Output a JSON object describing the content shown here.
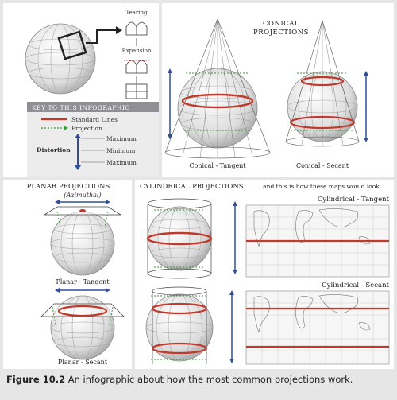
{
  "process": {
    "step1": "Tearing",
    "step2": "Expansion"
  },
  "conical": {
    "heading_line1": "CONICAL",
    "heading_line2": "PROJECTIONS",
    "tangent_label": "Conical - Tangent",
    "secant_label": "Conical - Secant"
  },
  "key": {
    "title": "KEY TO THIS INFOGRAPHIC",
    "standard_lines": "Standard Lines",
    "projection": "Projection",
    "distortion": "Distortion",
    "maximum_top": "Maximum",
    "minimum": "Minimum",
    "maximum_bottom": "Maximum"
  },
  "planar": {
    "heading": "PLANAR PROJECTIONS",
    "subheading": "(Azimuthal)",
    "tangent_label": "Planar - Tangent",
    "secant_label": "Planar - Secant"
  },
  "cylindrical": {
    "heading": "CYLINDRICAL PROJECTIONS",
    "maps_heading": "...and this is how these maps would look",
    "tangent_label": "Cylindrical - Tangent",
    "secant_label": "Cylindrical - Secant"
  },
  "caption": {
    "figure": "Figure 10.2",
    "text": "An infographic about how the most common projections work."
  },
  "colors": {
    "standard_line": "#c0392b",
    "projection": "#3a9a3a",
    "distortion_arrow": "#2f4f9a",
    "key_header": "#8f8f95"
  }
}
